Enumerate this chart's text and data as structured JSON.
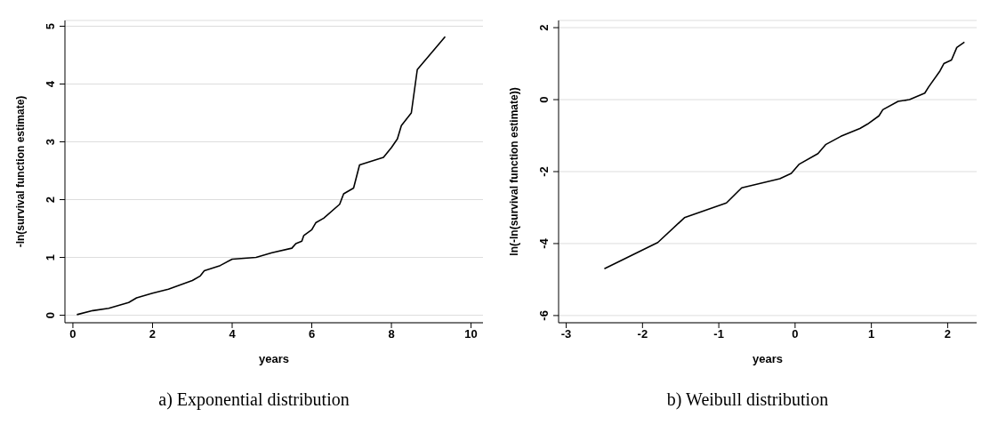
{
  "chart_data": [
    {
      "type": "line",
      "title": "a) Exponential distribution",
      "xlabel": "years",
      "ylabel": "-ln(survival function estimate)",
      "xlim": [
        -0.2,
        10.3
      ],
      "xticks": [
        0,
        2,
        4,
        6,
        8,
        10
      ],
      "ylim": [
        -0.13,
        5.1
      ],
      "yticks": [
        0,
        1,
        2,
        3,
        4,
        5
      ],
      "grid": "y",
      "legend": false,
      "marker": "none",
      "line_style": "solid",
      "series": [
        {
          "color": "#000000",
          "x": [
            0.1,
            0.5,
            0.9,
            1.4,
            1.6,
            2.0,
            2.4,
            2.6,
            3.0,
            3.2,
            3.3,
            3.7,
            4.0,
            4.6,
            5.0,
            5.5,
            5.6,
            5.75,
            5.8,
            6.0,
            6.1,
            6.3,
            6.7,
            6.8,
            7.05,
            7.2,
            7.8,
            8.0,
            8.15,
            8.25,
            8.5,
            8.65,
            9.35
          ],
          "values": [
            0.01,
            0.08,
            0.12,
            0.22,
            0.3,
            0.38,
            0.45,
            0.5,
            0.6,
            0.68,
            0.77,
            0.86,
            0.97,
            1.0,
            1.08,
            1.16,
            1.24,
            1.28,
            1.38,
            1.48,
            1.6,
            1.68,
            1.92,
            2.1,
            2.2,
            2.6,
            2.73,
            2.9,
            3.05,
            3.28,
            3.5,
            4.25,
            4.82
          ]
        }
      ]
    },
    {
      "type": "line",
      "title": "b) Weibull distribution",
      "xlabel": "years",
      "ylabel": "ln(-ln(survival function estimate))",
      "xlim": [
        -3.1,
        2.38
      ],
      "xticks": [
        -3,
        -2,
        -1,
        0,
        1,
        2
      ],
      "ylim": [
        -6.2,
        2.2
      ],
      "yticks": [
        -6,
        -4,
        -2,
        0,
        2
      ],
      "grid": "y",
      "legend": false,
      "marker": "none",
      "line_style": "solid",
      "series": [
        {
          "color": "#000000",
          "x": [
            -2.5,
            -1.8,
            -1.45,
            -0.9,
            -0.7,
            -0.2,
            -0.05,
            0.05,
            0.3,
            0.4,
            0.6,
            0.85,
            0.95,
            1.1,
            1.15,
            1.35,
            1.5,
            1.7,
            1.75,
            1.9,
            1.95,
            2.05,
            2.12,
            2.22
          ],
          "values": [
            -4.7,
            -3.97,
            -3.28,
            -2.87,
            -2.45,
            -2.2,
            -2.05,
            -1.8,
            -1.5,
            -1.25,
            -1.02,
            -0.8,
            -0.68,
            -0.45,
            -0.28,
            -0.05,
            0,
            0.18,
            0.35,
            0.8,
            1.0,
            1.1,
            1.45,
            1.6
          ]
        }
      ]
    }
  ]
}
